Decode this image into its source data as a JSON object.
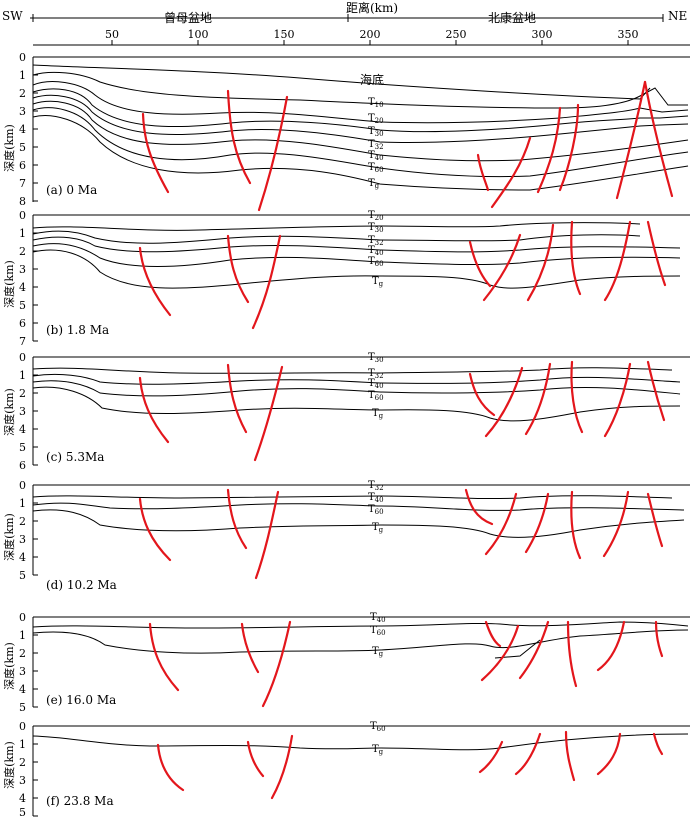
{
  "header": {
    "sw": "SW",
    "ne": "NE",
    "distance_label": "距离(km)",
    "basin_left": "曾母盆地",
    "basin_right": "北康盆地",
    "x_ticks": [
      "50",
      "100",
      "150",
      "200",
      "250",
      "300",
      "350"
    ]
  },
  "y_axis_label": "深度(km)",
  "seafloor_label": "海底",
  "panels": [
    {
      "id": "a",
      "caption": "(a)  0 Ma",
      "depth_ticks": [
        "0",
        "1",
        "2",
        "3",
        "4",
        "5",
        "6",
        "7",
        "8"
      ],
      "horizons": [
        {
          "label": "T10",
          "base": "T",
          "sub": "10"
        },
        {
          "label": "T20",
          "base": "T",
          "sub": "20"
        },
        {
          "label": "T30",
          "base": "T",
          "sub": "30"
        },
        {
          "label": "T32",
          "base": "T",
          "sub": "32"
        },
        {
          "label": "T40",
          "base": "T",
          "sub": "40"
        },
        {
          "label": "T60",
          "base": "T",
          "sub": "60"
        },
        {
          "label": "Tg",
          "base": "T",
          "sub": "g"
        }
      ]
    },
    {
      "id": "b",
      "caption": "(b)  1.8 Ma",
      "depth_ticks": [
        "0",
        "1",
        "2",
        "3",
        "4",
        "5",
        "6",
        "7"
      ],
      "horizons": [
        {
          "label": "T20",
          "base": "T",
          "sub": "20"
        },
        {
          "label": "T30",
          "base": "T",
          "sub": "30"
        },
        {
          "label": "T32",
          "base": "T",
          "sub": "32"
        },
        {
          "label": "T40",
          "base": "T",
          "sub": "40"
        },
        {
          "label": "T60",
          "base": "T",
          "sub": "60"
        },
        {
          "label": "Tg",
          "base": "T",
          "sub": "g"
        }
      ]
    },
    {
      "id": "c",
      "caption": "(c)  5.3Ma",
      "depth_ticks": [
        "0",
        "1",
        "2",
        "3",
        "4",
        "5",
        "6"
      ],
      "horizons": [
        {
          "label": "T30",
          "base": "T",
          "sub": "30"
        },
        {
          "label": "T32",
          "base": "T",
          "sub": "32"
        },
        {
          "label": "T40",
          "base": "T",
          "sub": "40"
        },
        {
          "label": "T60",
          "base": "T",
          "sub": "60"
        },
        {
          "label": "Tg",
          "base": "T",
          "sub": "g"
        }
      ]
    },
    {
      "id": "d",
      "caption": "(d)  10.2 Ma",
      "depth_ticks": [
        "0",
        "1",
        "2",
        "3",
        "4",
        "5"
      ],
      "horizons": [
        {
          "label": "T32",
          "base": "T",
          "sub": "32"
        },
        {
          "label": "T40",
          "base": "T",
          "sub": "40"
        },
        {
          "label": "T60",
          "base": "T",
          "sub": "60"
        },
        {
          "label": "Tg",
          "base": "T",
          "sub": "g"
        }
      ]
    },
    {
      "id": "e",
      "caption": "(e)  16.0 Ma",
      "depth_ticks": [
        "0",
        "1",
        "2",
        "3",
        "4",
        "5"
      ],
      "horizons": [
        {
          "label": "T40",
          "base": "T",
          "sub": "40"
        },
        {
          "label": "T60",
          "base": "T",
          "sub": "60"
        },
        {
          "label": "Tg",
          "base": "T",
          "sub": "g"
        }
      ]
    },
    {
      "id": "f",
      "caption": "(f)  23.8 Ma",
      "depth_ticks": [
        "0",
        "1",
        "2",
        "3",
        "4",
        "5"
      ],
      "horizons": [
        {
          "label": "T60",
          "base": "T",
          "sub": "60"
        },
        {
          "label": "Tg",
          "base": "T",
          "sub": "g"
        }
      ]
    }
  ],
  "colors": {
    "fault": "#e3161c",
    "line": "#000000"
  }
}
